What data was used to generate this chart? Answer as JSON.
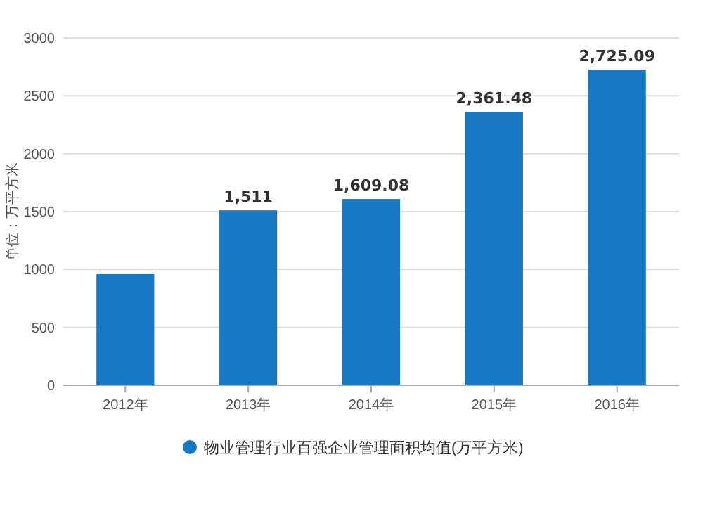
{
  "chart_data": {
    "type": "bar",
    "ylabel": "单位：万平方米",
    "categories": [
      "2012年",
      "2013年",
      "2014年",
      "2015年",
      "2016年"
    ],
    "series": [
      {
        "name": "物业管理行业百强企业管理面积均值(万平方米)",
        "color": "#1878c4",
        "values": [
          960,
          1511,
          1609.08,
          2361.48,
          2725.09
        ],
        "value_labels": [
          null,
          "1,511",
          "1,609.08",
          "2,361.48",
          "2,725.09"
        ]
      }
    ],
    "ylim": [
      0,
      3000
    ],
    "yticks": [
      0,
      500,
      1000,
      1500,
      2000,
      2500,
      3000
    ],
    "grid": "y",
    "legend": "bottom"
  }
}
